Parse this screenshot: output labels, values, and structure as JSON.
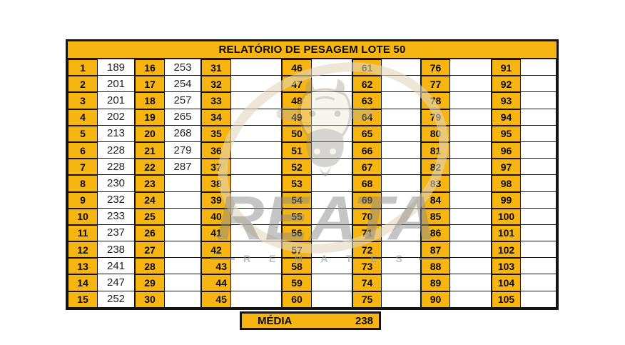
{
  "title": "RELATÓRIO DE PESAGEM LOTE 50",
  "media": {
    "label": "MÉDIA",
    "value": "238"
  },
  "watermark": {
    "brand": "REATA",
    "subtitle": "R E M A T E S",
    "bull_logo": "bull-head-logo"
  },
  "colors": {
    "accent_orange": "#f7b511",
    "grid_line": "#141414",
    "value_text": "#232323",
    "watermark_gray": "#8c8c8c"
  },
  "layout_hints": {
    "right_aligned_numbers": [
      43,
      44,
      45
    ]
  },
  "table": {
    "columns": [
      {
        "numbers": [
          1,
          2,
          3,
          4,
          5,
          6,
          7,
          8,
          9,
          10,
          11,
          12,
          13,
          14,
          15
        ],
        "values": [
          "189",
          "201",
          "201",
          "202",
          "213",
          "228",
          "228",
          "230",
          "232",
          "233",
          "237",
          "238",
          "241",
          "247",
          "252"
        ]
      },
      {
        "numbers": [
          16,
          17,
          18,
          19,
          20,
          21,
          22,
          23,
          24,
          25,
          26,
          27,
          28,
          29,
          30
        ],
        "values": [
          "253",
          "254",
          "257",
          "265",
          "268",
          "279",
          "287",
          "",
          "",
          "",
          "",
          "",
          "",
          "",
          ""
        ]
      },
      {
        "numbers": [
          31,
          32,
          33,
          34,
          35,
          36,
          37,
          38,
          39,
          40,
          41,
          42,
          43,
          44,
          45
        ],
        "values": [
          "",
          "",
          "",
          "",
          "",
          "",
          "",
          "",
          "",
          "",
          "",
          "",
          "",
          "",
          ""
        ]
      },
      {
        "numbers": [
          46,
          47,
          48,
          49,
          50,
          51,
          52,
          53,
          54,
          55,
          56,
          57,
          58,
          59,
          60
        ],
        "values": [
          "",
          "",
          "",
          "",
          "",
          "",
          "",
          "",
          "",
          "",
          "",
          "",
          "",
          "",
          ""
        ]
      },
      {
        "numbers": [
          61,
          62,
          63,
          64,
          65,
          66,
          67,
          68,
          69,
          70,
          71,
          72,
          73,
          74,
          75
        ],
        "values": [
          "",
          "",
          "",
          "",
          "",
          "",
          "",
          "",
          "",
          "",
          "",
          "",
          "",
          "",
          ""
        ]
      },
      {
        "numbers": [
          76,
          77,
          78,
          79,
          80,
          81,
          82,
          83,
          84,
          85,
          86,
          87,
          88,
          89,
          90
        ],
        "values": [
          "",
          "",
          "",
          "",
          "",
          "",
          "",
          "",
          "",
          "",
          "",
          "",
          "",
          "",
          ""
        ]
      },
      {
        "numbers": [
          91,
          92,
          93,
          94,
          95,
          96,
          97,
          98,
          99,
          100,
          101,
          102,
          103,
          104,
          105
        ],
        "values": [
          "",
          "",
          "",
          "",
          "",
          "",
          "",
          "",
          "",
          "",
          "",
          "",
          "",
          "",
          ""
        ]
      }
    ]
  }
}
